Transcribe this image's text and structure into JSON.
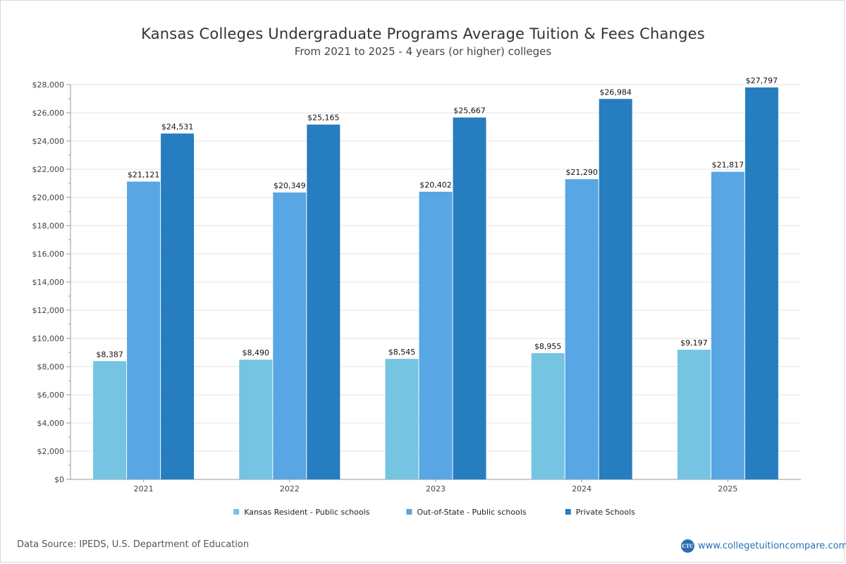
{
  "chart_data": {
    "type": "bar",
    "title": "Kansas Colleges Undergraduate Programs Average Tuition & Fees Changes",
    "subtitle": "From 2021 to 2025 - 4 years (or higher) colleges",
    "categories": [
      "2021",
      "2022",
      "2023",
      "2024",
      "2025"
    ],
    "series": [
      {
        "name": "Kansas Resident - Public schools",
        "color": "#74c4e2",
        "values": [
          8387,
          8490,
          8545,
          8955,
          9197
        ],
        "labels": [
          "$8,387",
          "$8,490",
          "$8,545",
          "$8,955",
          "$9,197"
        ]
      },
      {
        "name": "Out-of-State - Public schools",
        "color": "#58a6e3",
        "values": [
          21121,
          20349,
          20402,
          21290,
          21817
        ],
        "labels": [
          "$21,121",
          "$20,349",
          "$20,402",
          "$21,290",
          "$21,817"
        ]
      },
      {
        "name": "Private Schools",
        "color": "#267dbf",
        "values": [
          24531,
          25165,
          25667,
          26984,
          27797
        ],
        "labels": [
          "$24,531",
          "$25,165",
          "$25,667",
          "$26,984",
          "$27,797"
        ]
      }
    ],
    "ylim": [
      0,
      28000
    ],
    "yticks": [
      0,
      2000,
      4000,
      6000,
      8000,
      10000,
      12000,
      14000,
      16000,
      18000,
      20000,
      22000,
      24000,
      26000,
      28000
    ],
    "ytick_labels": [
      "$0",
      "$2,000",
      "$4,000",
      "$6,000",
      "$8,000",
      "$10,000",
      "$12,000",
      "$14,000",
      "$16,000",
      "$18,000",
      "$20,000",
      "$22,000",
      "$24,000",
      "$26,000",
      "$28,000"
    ],
    "xlabel": "",
    "ylabel": "",
    "grid": true,
    "legend_position": "bottom-center"
  },
  "footer": {
    "source": "Data Source: IPEDS, U.S. Department of Education",
    "brand_logo": "CTC",
    "brand_url": "www.collegetuitioncompare.com"
  }
}
